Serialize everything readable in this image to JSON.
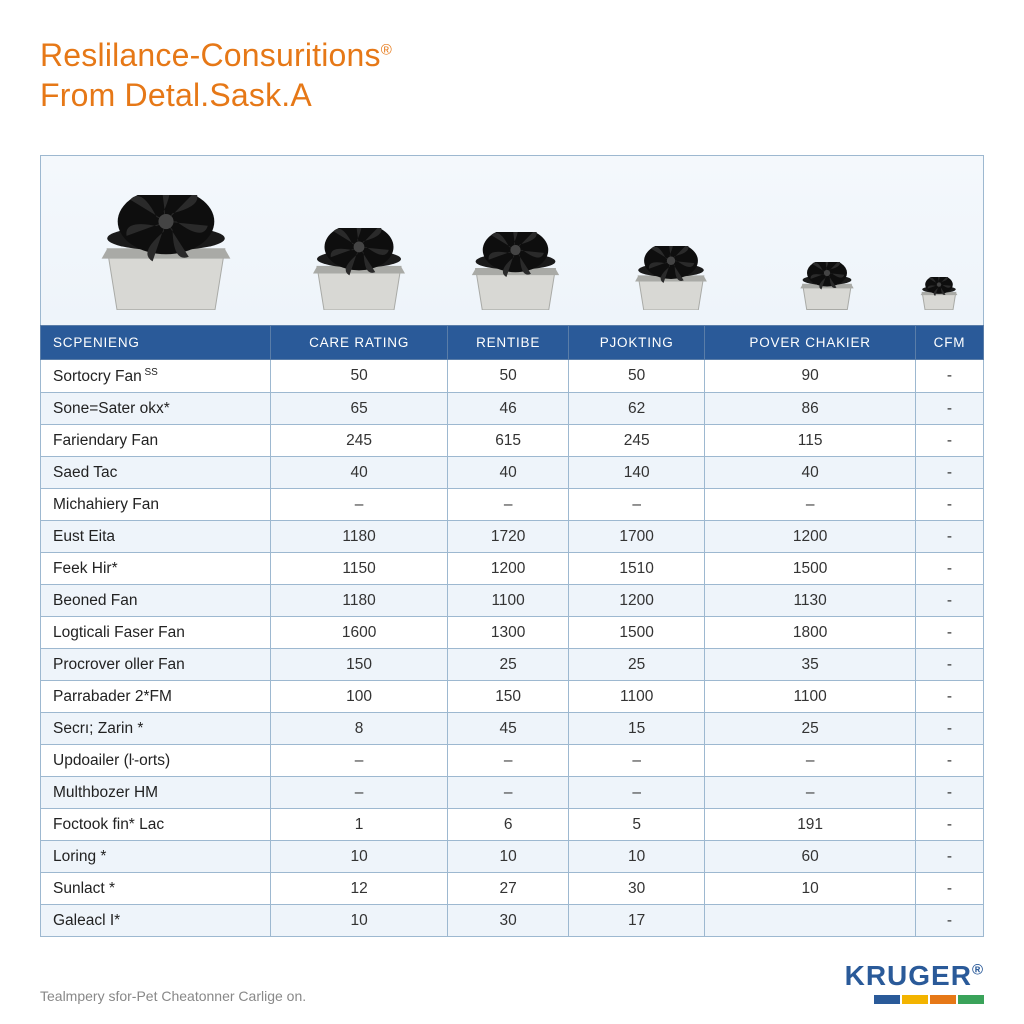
{
  "title": {
    "line1_a": "Reslilance-Consuritions",
    "line1_reg": "®",
    "line2": "From Detal.Sask.A"
  },
  "colors": {
    "accent_orange": "#e67817",
    "header_blue": "#2a5a99",
    "row_alt": "#eef4fa",
    "border_blue": "#9db8d0",
    "body_text": "#333333"
  },
  "fans": {
    "sizes": [
      140,
      100,
      95,
      78,
      58,
      40
    ],
    "top_color": "#1a1a1a",
    "base_color": "#d8d8d4",
    "base_shadow": "#a9aaa6"
  },
  "table": {
    "columns": [
      "SCPENIENG",
      "CARE RATING",
      "RENTIBE",
      "PJOKTING",
      "POVER CHAKIER",
      "CFM"
    ],
    "rows": [
      {
        "label": "Sortocry Fan",
        "sup": "SS",
        "cells": [
          "50",
          "50",
          "50",
          "90",
          "-"
        ]
      },
      {
        "label": "Sone=Sater okx*",
        "cells": [
          "65",
          "46",
          "62",
          "86",
          "-"
        ]
      },
      {
        "label": "Fariendary Fan",
        "cells": [
          "245",
          "615",
          "245",
          "115",
          "-"
        ]
      },
      {
        "label": "Saed Tac",
        "cells": [
          "40",
          "40",
          "140",
          "40",
          "-"
        ]
      },
      {
        "label": "Michahiery Fan",
        "cells": [
          "–",
          "–",
          "–",
          "–",
          "-"
        ]
      },
      {
        "label": "Eust Eita",
        "cells": [
          "1180",
          "1720",
          "1700",
          "1200",
          "-"
        ]
      },
      {
        "label": "Feek Hir*",
        "cells": [
          "1150",
          "1200",
          "1510",
          "1500",
          "-"
        ]
      },
      {
        "label": "Beoned Fan",
        "cells": [
          "1180",
          "1100",
          "1200",
          "1130",
          "-"
        ]
      },
      {
        "label": "Logticali Faser Fan",
        "cells": [
          "1600",
          "1300",
          "1500",
          "1800",
          "-"
        ]
      },
      {
        "label": "Procrover oller Fan",
        "cells": [
          "150",
          "25",
          "25",
          "35",
          "-"
        ]
      },
      {
        "label": "Parrabader 2*FM",
        "cells": [
          "100",
          "150",
          "1100",
          "1100",
          "-"
        ]
      },
      {
        "label": "Secrı; Zarin *",
        "cells": [
          "8",
          "45",
          "15",
          "25",
          "-"
        ]
      },
      {
        "label": "Updoailer (ŀ-orts)",
        "cells": [
          "–",
          "–",
          "–",
          "–",
          "-"
        ]
      },
      {
        "label": "Multhbozer HM",
        "cells": [
          "–",
          "–",
          "–",
          "–",
          "-"
        ]
      },
      {
        "label": "Foctook fin* Lac",
        "cells": [
          "1",
          "6",
          "5",
          "191",
          "-"
        ]
      },
      {
        "label": "Loring *",
        "cells": [
          "10",
          "10",
          "10",
          "60",
          "-"
        ]
      },
      {
        "label": "Sunlact *",
        "cells": [
          "12",
          "27",
          "30",
          "10",
          "-"
        ]
      },
      {
        "label": "Galeacl I*",
        "cells": [
          "10",
          "30",
          "17",
          "",
          "-"
        ]
      }
    ]
  },
  "footer": {
    "note": "Tealmpery sfor-Pet Cheatonner Carlige on.",
    "logo_text": "KRUGER",
    "logo_reg": "®",
    "logo_bar_colors": [
      "#2a5a99",
      "#f3b400",
      "#e67817",
      "#3aa35a"
    ]
  }
}
